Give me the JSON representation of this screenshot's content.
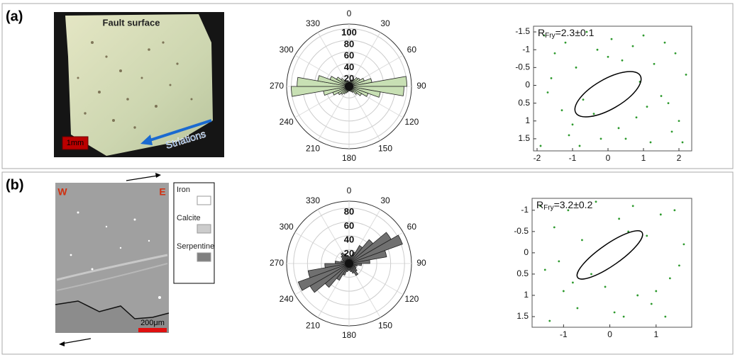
{
  "panels": [
    {
      "label": "(a)",
      "photo": {
        "title": "Fault surface",
        "scale": "1mm",
        "arrow_label": "Striations"
      },
      "rose": {
        "type": "rose",
        "angle_labels": [
          0,
          30,
          60,
          90,
          120,
          150,
          180,
          210,
          240,
          270,
          300,
          330
        ],
        "rticks": [
          20,
          40,
          60,
          80,
          100
        ],
        "rlim": [
          0,
          108
        ],
        "bin_width": 10,
        "color": "#c8e0b4",
        "values": [
          8,
          10,
          12,
          15,
          20,
          22,
          28,
          40,
          100,
          95,
          55,
          35,
          25,
          18,
          12,
          10,
          8,
          8,
          8,
          10,
          12,
          15,
          18,
          22,
          30,
          45,
          100,
          90,
          55,
          35,
          25,
          18,
          12,
          10,
          8,
          8
        ]
      },
      "fry": {
        "type": "scatter",
        "color": "#2e9a2e",
        "x": [
          -1.8,
          -1.5,
          -1.2,
          -0.9,
          -0.6,
          -0.3,
          0.1,
          0.4,
          0.7,
          1.0,
          1.3,
          1.6,
          1.9,
          2.2,
          -1.7,
          -1.3,
          -1.0,
          -0.7,
          -0.2,
          0.3,
          0.8,
          1.2,
          1.5,
          2.0,
          -1.9,
          -1.1,
          -0.4,
          0.5,
          1.1,
          1.8,
          -1.6,
          -0.8,
          0.0,
          0.9,
          1.7,
          2.1
        ],
        "y": [
          -1.4,
          -0.9,
          -1.2,
          -0.5,
          -1.5,
          -1.0,
          -1.3,
          -0.7,
          -1.1,
          -1.4,
          -0.6,
          -1.2,
          -0.9,
          -0.3,
          0.2,
          0.7,
          1.1,
          0.4,
          1.5,
          1.2,
          0.9,
          1.6,
          0.3,
          1.0,
          1.7,
          1.4,
          0.8,
          1.5,
          0.6,
          1.3,
          -0.2,
          1.7,
          -0.8,
          -0.1,
          0.5,
          1.6
        ],
        "xlim": [
          -2.1,
          2.36
        ],
        "ylim": [
          -1.66,
          1.84
        ],
        "xticks": [
          -2,
          -1,
          0,
          1,
          2
        ],
        "yticks": [
          -1.5,
          -1,
          -0.5,
          0,
          0.5,
          1,
          1.5
        ],
        "ellipse": {
          "cx": 0,
          "cy": 0.25,
          "a": 1.05,
          "b": 0.42,
          "angle": -30
        },
        "annotation": {
          "symbol": "R",
          "sub": "Fry",
          "value": "=2.3±0.1"
        }
      }
    },
    {
      "label": "(b)",
      "photo": {
        "west": "W",
        "east": "E",
        "scale": "200μm",
        "legend": [
          {
            "name": "Iron",
            "color": "#ffffff"
          },
          {
            "name": "Calcite",
            "color": "#cccccc"
          },
          {
            "name": "Serpentine",
            "color": "#808080"
          }
        ]
      },
      "rose": {
        "type": "rose",
        "angle_labels": [
          0,
          30,
          60,
          90,
          120,
          150,
          180,
          210,
          240,
          270,
          300,
          330
        ],
        "rticks": [
          20,
          40,
          60,
          80
        ],
        "rlim": [
          0,
          90
        ],
        "bin_width": 10,
        "color": "#707070",
        "values": [
          10,
          12,
          18,
          30,
          45,
          70,
          82,
          55,
          30,
          18,
          12,
          10,
          12,
          15,
          20,
          15,
          12,
          10,
          10,
          12,
          18,
          28,
          45,
          65,
          78,
          60,
          35,
          20,
          12,
          10,
          12,
          15,
          18,
          15,
          12,
          10
        ]
      },
      "fry": {
        "type": "scatter",
        "color": "#2e9a2e",
        "x": [
          -1.5,
          -1.2,
          -0.9,
          -0.6,
          -0.3,
          0.2,
          0.5,
          0.8,
          1.1,
          1.4,
          1.6,
          -1.4,
          -1.0,
          -0.7,
          -0.1,
          0.3,
          0.9,
          1.3,
          -1.3,
          -0.8,
          0.1,
          0.6,
          1.2,
          1.5,
          -1.1,
          -0.4,
          0.4,
          1.0
        ],
        "y": [
          -1.1,
          -0.6,
          -1.0,
          -0.3,
          -1.2,
          -0.8,
          -1.1,
          -0.4,
          -0.9,
          -1.0,
          -0.2,
          0.4,
          0.9,
          1.3,
          0.8,
          1.5,
          1.2,
          0.6,
          1.6,
          0.7,
          1.4,
          1.0,
          1.5,
          0.3,
          0.2,
          0.5,
          -0.5,
          0.9
        ],
        "xlim": [
          -1.68,
          1.77
        ],
        "ylim": [
          -1.28,
          1.75
        ],
        "xticks": [
          -1,
          0,
          1
        ],
        "yticks": [
          -1,
          -0.5,
          0,
          0.5,
          1,
          1.5
        ],
        "ellipse": {
          "cx": 0,
          "cy": 0.05,
          "a": 0.85,
          "b": 0.25,
          "angle": -35
        },
        "annotation": {
          "symbol": "R",
          "sub": "Fry",
          "value": "=3.2±0.2"
        }
      }
    }
  ]
}
